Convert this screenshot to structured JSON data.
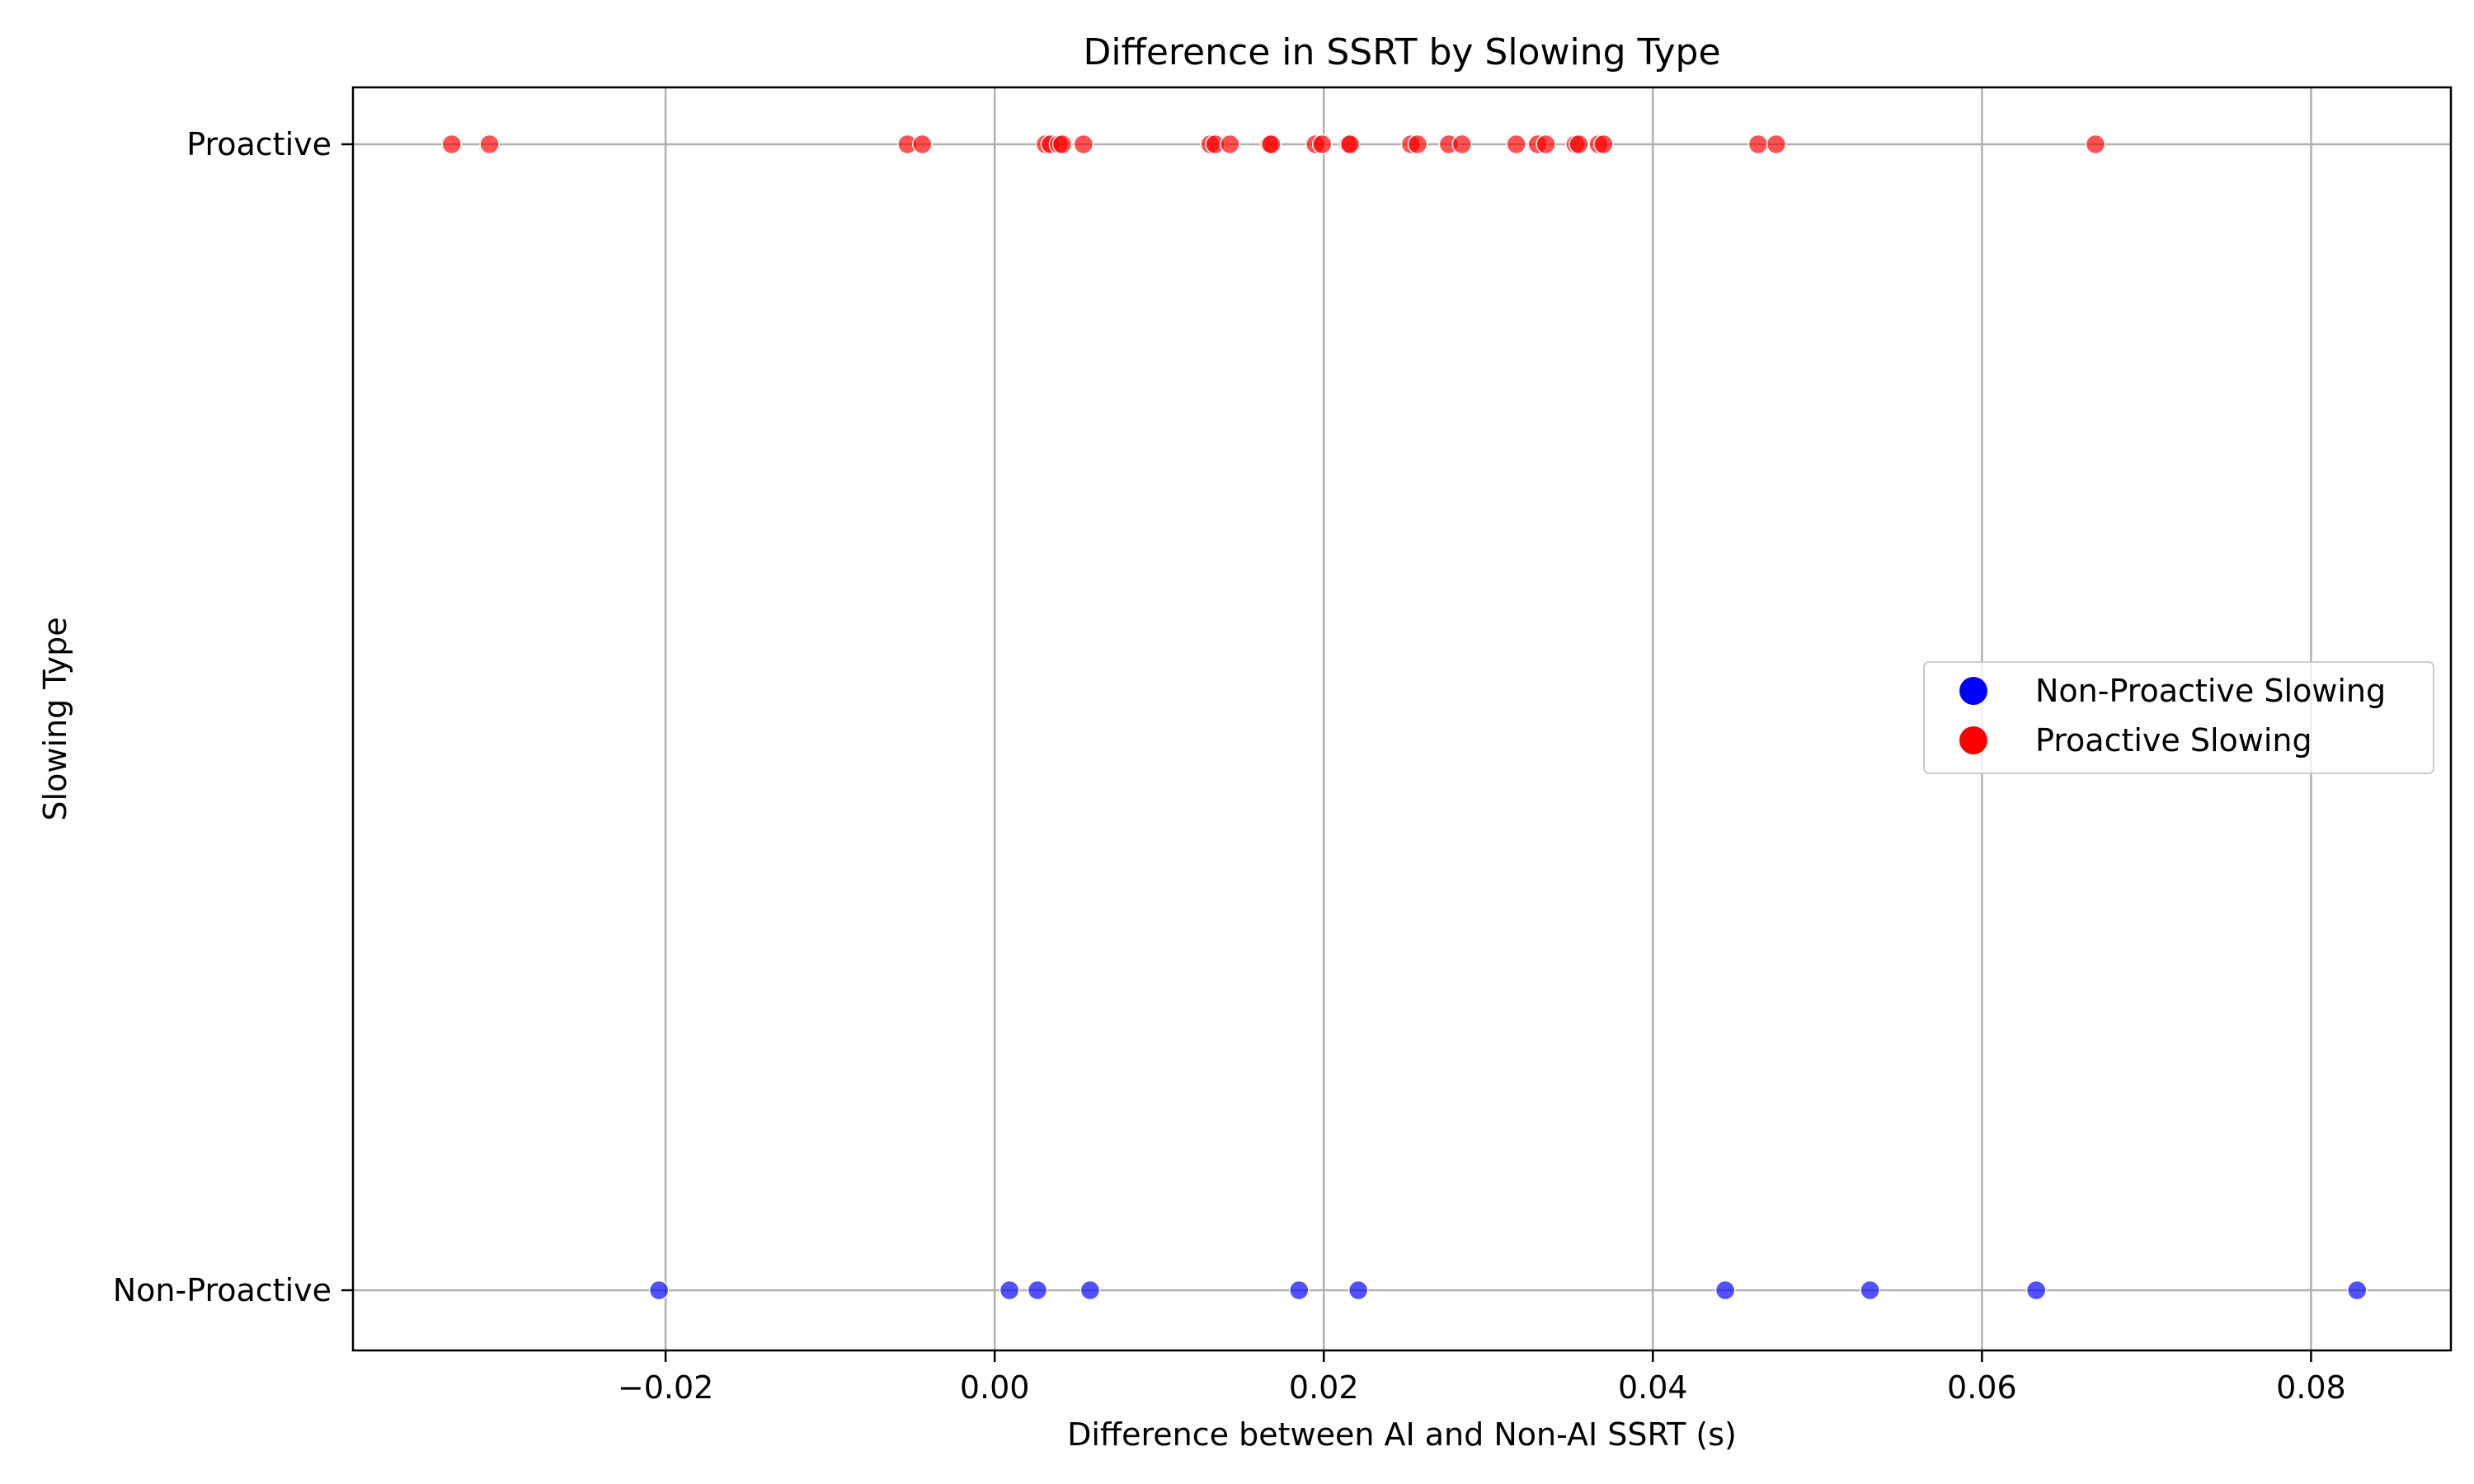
{
  "chart_data": {
    "type": "scatter",
    "title": "Difference in SSRT by Slowing Type",
    "xlabel": "Difference between AI and Non-AI SSRT (s)",
    "ylabel": "Slowing Type",
    "xlim": [
      -0.039,
      0.0885
    ],
    "x_ticks": [
      -0.02,
      0.0,
      0.02,
      0.04,
      0.06,
      0.08
    ],
    "x_tick_labels": [
      "−0.02",
      "0.00",
      "0.02",
      "0.04",
      "0.06",
      "0.08"
    ],
    "categories": [
      "Proactive",
      "Non-Proactive"
    ],
    "grid": true,
    "legend_position": "center-right",
    "series": [
      {
        "name": "Non-Proactive Slowing",
        "category": "Non-Proactive",
        "color": "#0000ff",
        "x": [
          -0.0204,
          0.0009,
          0.0026,
          0.0058,
          0.0185,
          0.0221,
          0.0444,
          0.0532,
          0.0633,
          0.0828
        ]
      },
      {
        "name": "Proactive Slowing",
        "category": "Proactive",
        "color": "#ff0000",
        "x": [
          -0.033,
          -0.0307,
          -0.0053,
          -0.0044,
          0.0031,
          0.0034,
          0.0039,
          0.0041,
          0.0054,
          0.0131,
          0.0134,
          0.0143,
          0.0167,
          0.0168,
          0.0195,
          0.0199,
          0.0215,
          0.0216,
          0.0253,
          0.0257,
          0.0276,
          0.0284,
          0.0317,
          0.033,
          0.0335,
          0.0353,
          0.0355,
          0.0367,
          0.037,
          0.0464,
          0.0475,
          0.0669
        ]
      }
    ]
  }
}
